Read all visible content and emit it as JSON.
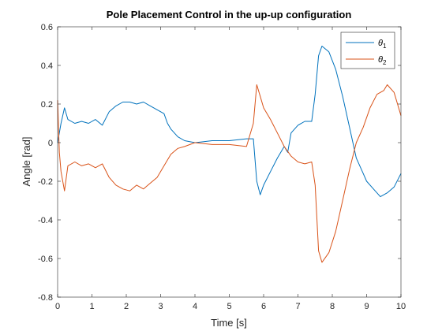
{
  "chart_data": {
    "type": "line",
    "title": "Pole Placement Control in the up-up configuration",
    "xlabel": "Time [s]",
    "ylabel": "Angle [rad]",
    "xlim": [
      0,
      10
    ],
    "ylim": [
      -0.8,
      0.6
    ],
    "xticks": [
      0,
      1,
      2,
      3,
      4,
      5,
      6,
      7,
      8,
      9,
      10
    ],
    "yticks": [
      -0.8,
      -0.6,
      -0.4,
      -0.2,
      0,
      0.2,
      0.4,
      0.6
    ],
    "xtick_labels": [
      "0",
      "1",
      "2",
      "3",
      "4",
      "5",
      "6",
      "7",
      "8",
      "9",
      "10"
    ],
    "ytick_labels": [
      "-0.8",
      "-0.6",
      "-0.4",
      "-0.2",
      "0",
      "0.2",
      "0.4",
      "0.6"
    ],
    "grid": false,
    "legend_position": "top-right",
    "series": [
      {
        "name": "θ",
        "name_subscript": "1",
        "color": "#0072BD",
        "x": [
          0,
          0.1,
          0.2,
          0.3,
          0.5,
          0.7,
          0.9,
          1.1,
          1.3,
          1.5,
          1.7,
          1.9,
          2.1,
          2.3,
          2.5,
          2.7,
          2.9,
          3.1,
          3.2,
          3.3,
          3.4,
          3.5,
          3.7,
          4.0,
          4.5,
          5.0,
          5.5,
          5.7,
          5.8,
          5.9,
          6.0,
          6.2,
          6.4,
          6.6,
          6.7,
          6.8,
          7.0,
          7.2,
          7.4,
          7.5,
          7.6,
          7.7,
          7.9,
          8.1,
          8.3,
          8.5,
          8.7,
          8.9,
          9.0,
          9.2,
          9.4,
          9.6,
          9.8,
          10.0
        ],
        "y": [
          0,
          0.1,
          0.18,
          0.12,
          0.1,
          0.11,
          0.1,
          0.12,
          0.09,
          0.16,
          0.19,
          0.21,
          0.21,
          0.2,
          0.21,
          0.19,
          0.17,
          0.15,
          0.1,
          0.07,
          0.05,
          0.03,
          0.01,
          0,
          0.01,
          0.01,
          0.02,
          0.02,
          -0.2,
          -0.27,
          -0.22,
          -0.15,
          -0.08,
          -0.02,
          -0.05,
          0.05,
          0.09,
          0.11,
          0.11,
          0.25,
          0.45,
          0.5,
          0.47,
          0.38,
          0.24,
          0.08,
          -0.08,
          -0.16,
          -0.2,
          -0.24,
          -0.28,
          -0.26,
          -0.23,
          -0.16
        ]
      },
      {
        "name": "θ",
        "name_subscript": "2",
        "color": "#D95319",
        "x": [
          0,
          0.05,
          0.1,
          0.2,
          0.3,
          0.5,
          0.7,
          0.9,
          1.1,
          1.3,
          1.5,
          1.7,
          1.9,
          2.1,
          2.3,
          2.5,
          2.7,
          2.9,
          3.1,
          3.3,
          3.5,
          3.7,
          4.0,
          4.5,
          5.0,
          5.5,
          5.7,
          5.8,
          5.9,
          6.0,
          6.2,
          6.4,
          6.6,
          6.8,
          7.0,
          7.2,
          7.4,
          7.5,
          7.6,
          7.7,
          7.9,
          8.1,
          8.3,
          8.5,
          8.7,
          8.9,
          9.1,
          9.3,
          9.5,
          9.6,
          9.8,
          10.0
        ],
        "y": [
          0.22,
          -0.05,
          -0.15,
          -0.25,
          -0.12,
          -0.1,
          -0.12,
          -0.11,
          -0.13,
          -0.11,
          -0.18,
          -0.22,
          -0.24,
          -0.25,
          -0.22,
          -0.24,
          -0.21,
          -0.18,
          -0.12,
          -0.06,
          -0.03,
          -0.02,
          0,
          -0.01,
          -0.01,
          -0.02,
          0.1,
          0.3,
          0.24,
          0.18,
          0.12,
          0.05,
          -0.02,
          -0.07,
          -0.1,
          -0.11,
          -0.1,
          -0.22,
          -0.56,
          -0.62,
          -0.57,
          -0.46,
          -0.3,
          -0.14,
          0,
          0.08,
          0.18,
          0.25,
          0.27,
          0.3,
          0.26,
          0.14
        ]
      }
    ]
  }
}
